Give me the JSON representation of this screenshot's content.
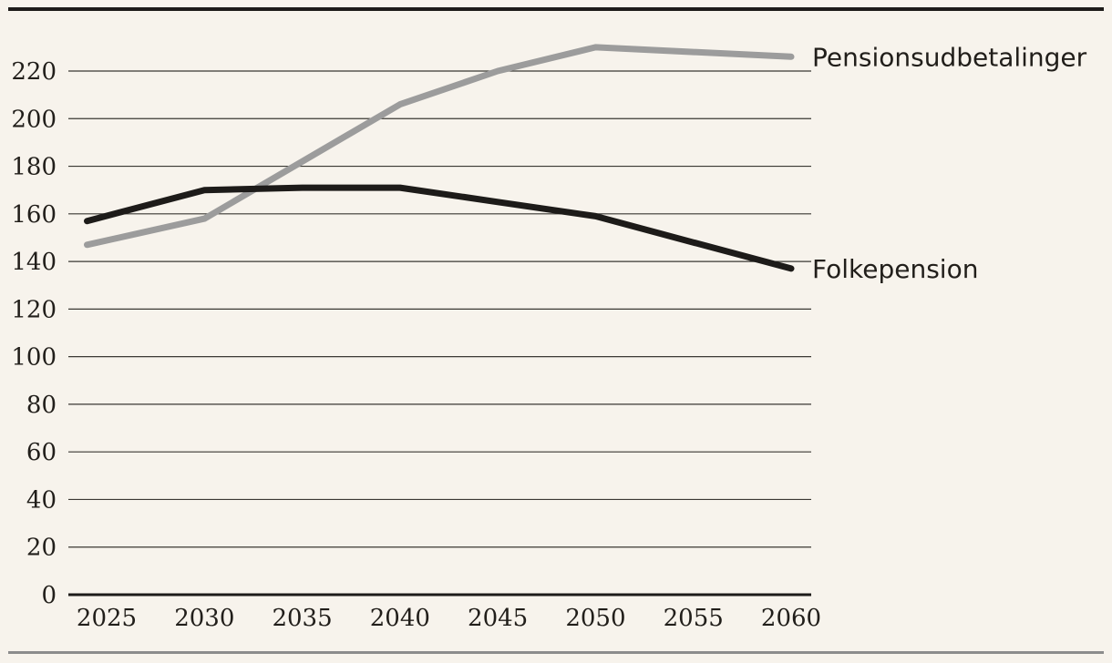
{
  "figure": {
    "description": "Line chart of Danish pension payouts, billions, 2024-2060",
    "top_rule": true,
    "bottom_rule": true
  },
  "colors": {
    "background": "#f7f3ec",
    "text": "#211e1a",
    "grid": "#3a3833",
    "axis": "#1d1b19",
    "rule_top": "#1d1b19",
    "rule_bottom": "#8c8c8c",
    "series_pensionsudbetalinger": "#9c9c9c",
    "series_folkepension": "#1d1b19"
  },
  "chart_data": {
    "type": "line",
    "x": [
      2024,
      2030,
      2035,
      2040,
      2045,
      2050,
      2055,
      2060
    ],
    "series": [
      {
        "name": "Pensionsudbetalinger",
        "color": "#9c9c9c",
        "values": [
          147,
          158,
          182,
          206,
          220,
          230,
          228,
          226
        ]
      },
      {
        "name": "Folkepension",
        "color": "#1d1b19",
        "values": [
          157,
          170,
          171,
          171,
          165,
          159,
          148,
          137
        ]
      }
    ],
    "xticks": [
      2025,
      2030,
      2035,
      2040,
      2045,
      2050,
      2055,
      2060
    ],
    "yticks": [
      0,
      20,
      40,
      60,
      80,
      100,
      120,
      140,
      160,
      180,
      200,
      220
    ],
    "xlim": [
      2024,
      2060
    ],
    "ylim": [
      0,
      233
    ],
    "grid": "horizontal-only",
    "legend_position": "end-of-line-labels",
    "title": "",
    "xlabel": "",
    "ylabel": ""
  }
}
